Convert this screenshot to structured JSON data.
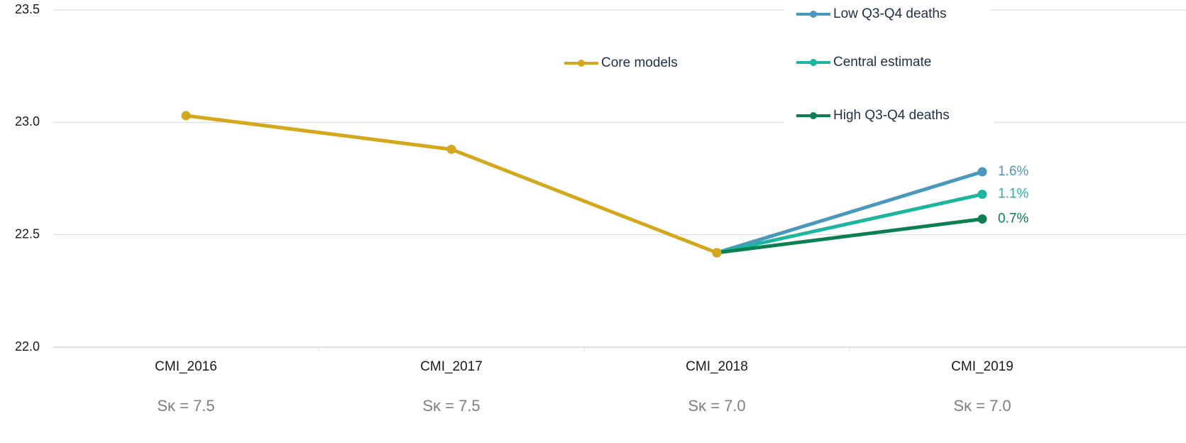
{
  "chart_data": {
    "type": "line",
    "categories": [
      "CMI_2016",
      "CMI_2017",
      "CMI_2018",
      "CMI_2019"
    ],
    "sublabels": [
      "Sκ = 7.5",
      "Sκ = 7.5",
      "Sκ = 7.0",
      "Sκ = 7.0"
    ],
    "series": [
      {
        "name": "Core models",
        "color": "#d4a81c",
        "values": [
          23.03,
          22.88,
          22.42,
          null
        ]
      },
      {
        "name": "Low Q3-Q4 deaths",
        "color": "#4a98bd",
        "values": [
          null,
          null,
          22.42,
          22.78
        ],
        "annotation": "1.6%"
      },
      {
        "name": "Central estimate",
        "color": "#1db5a0",
        "values": [
          null,
          null,
          22.42,
          22.68
        ],
        "annotation": "1.1%"
      },
      {
        "name": "High Q3-Q4 deaths",
        "color": "#0a7f4f",
        "values": [
          null,
          null,
          22.42,
          22.57
        ],
        "annotation": "0.7%"
      }
    ],
    "ylim": [
      22.0,
      23.5
    ],
    "yticks": [
      {
        "value": 22.0,
        "label": "22.0"
      },
      {
        "value": 22.5,
        "label": "22.5"
      },
      {
        "value": 23.0,
        "label": "23.0"
      },
      {
        "value": 23.5,
        "label": "23.5"
      }
    ],
    "grid": true
  }
}
